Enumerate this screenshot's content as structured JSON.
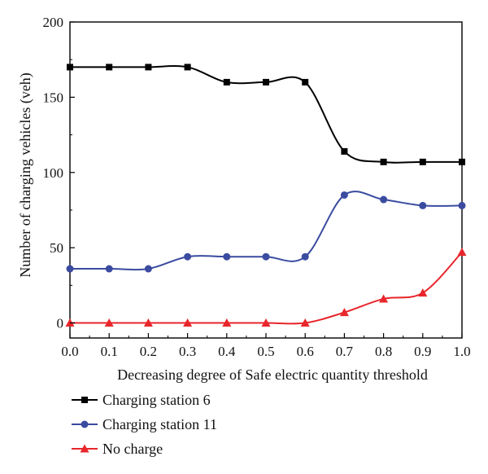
{
  "chart_data": {
    "type": "line",
    "title": "",
    "xlabel": "Decreasing degree of Safe electric quantity threshold",
    "ylabel": "Number of charging vehicles (veh)",
    "xlim": [
      0.0,
      1.0
    ],
    "ylim": [
      -10,
      200
    ],
    "x_ticks": [
      "0.0",
      "0.1",
      "0.2",
      "0.3",
      "0.4",
      "0.5",
      "0.6",
      "0.7",
      "0.8",
      "0.9",
      "1.0"
    ],
    "y_ticks": [
      "0",
      "50",
      "100",
      "150",
      "200"
    ],
    "grid": false,
    "legend_position": "bottom-left, below plot",
    "x": [
      0.0,
      0.1,
      0.2,
      0.3,
      0.4,
      0.5,
      0.6,
      0.7,
      0.8,
      0.9,
      1.0
    ],
    "series": [
      {
        "name": "Charging station 6",
        "marker": "square",
        "color": "#000000",
        "values": [
          170,
          170,
          170,
          170,
          160,
          160,
          160,
          114,
          107,
          107,
          107
        ]
      },
      {
        "name": "Charging station 11",
        "marker": "circle",
        "color": "#3a4ba0",
        "values": [
          36,
          36,
          36,
          44,
          44,
          44,
          44,
          85,
          82,
          78,
          78
        ]
      },
      {
        "name": "No charge",
        "marker": "triangle",
        "color": "#e8262b",
        "values": [
          0,
          0,
          0,
          0,
          0,
          0,
          0,
          7,
          16,
          20,
          47
        ]
      }
    ]
  }
}
